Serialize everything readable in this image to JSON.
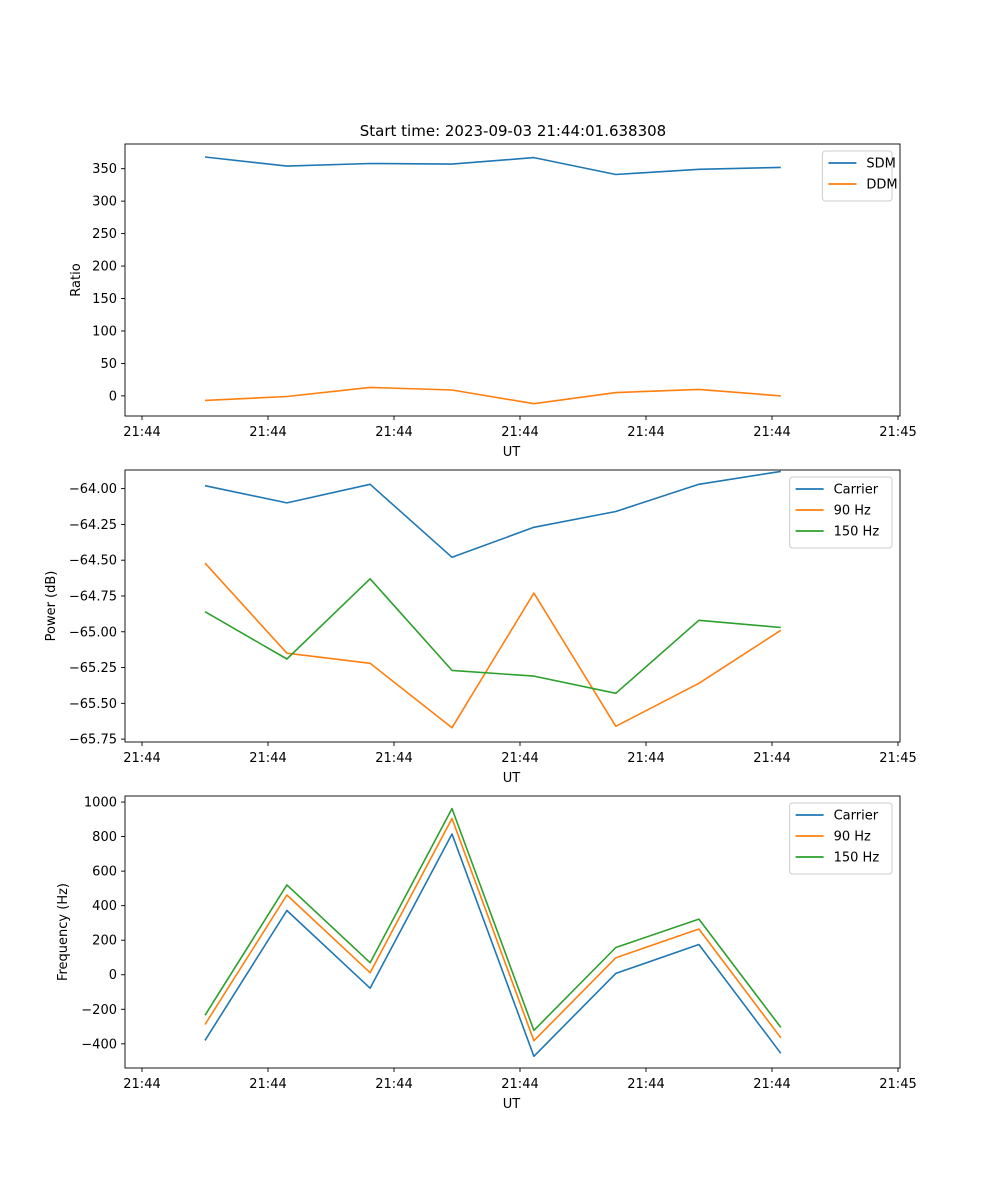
{
  "figure_title": "Start time: 2023-09-03 21:44:01.638308",
  "chart_data": [
    {
      "type": "line",
      "title": "Start time: 2023-09-03 21:44:01.638308",
      "xlabel": "UT",
      "ylabel": "Ratio",
      "xlim": [
        0,
        6
      ],
      "ylim": [
        -31,
        388
      ],
      "x_ticks": [
        0.0,
        1.0,
        2.0,
        3.0,
        4.0,
        5.0,
        6.0
      ],
      "x_tick_labels": [
        "21:44",
        "21:44",
        "21:44",
        "21:44",
        "21:44",
        "21:44",
        "21:45"
      ],
      "y_ticks": [
        0,
        50,
        100,
        150,
        200,
        250,
        300,
        350
      ],
      "y_tick_labels": [
        "0",
        "50",
        "100",
        "150",
        "200",
        "250",
        "300",
        "350"
      ],
      "x": [
        0.5,
        1.15,
        1.81,
        2.46,
        3.11,
        3.76,
        4.42,
        5.07
      ],
      "legend_position": "top-right",
      "series": [
        {
          "name": "SDM",
          "color": "#1f77b4",
          "values": [
            368,
            354,
            358,
            357,
            367,
            341,
            349,
            352
          ]
        },
        {
          "name": "DDM",
          "color": "#ff7f0e",
          "values": [
            -7,
            -1,
            13,
            9,
            -12,
            5,
            10,
            0
          ]
        }
      ]
    },
    {
      "type": "line",
      "title": "",
      "xlabel": "UT",
      "ylabel": "Power (dB)",
      "xlim": [
        0,
        6
      ],
      "ylim": [
        -65.77,
        -63.87
      ],
      "x_ticks": [
        0.0,
        1.0,
        2.0,
        3.0,
        4.0,
        5.0,
        6.0
      ],
      "x_tick_labels": [
        "21:44",
        "21:44",
        "21:44",
        "21:44",
        "21:44",
        "21:44",
        "21:45"
      ],
      "y_ticks": [
        -64.0,
        -64.25,
        -64.5,
        -64.75,
        -65.0,
        -65.25,
        -65.5,
        -65.75
      ],
      "y_tick_labels": [
        "−64.00",
        "−64.25",
        "−64.50",
        "−64.75",
        "−65.00",
        "−65.25",
        "−65.50",
        "−65.75"
      ],
      "x": [
        0.5,
        1.15,
        1.81,
        2.46,
        3.11,
        3.76,
        4.42,
        5.07
      ],
      "legend_position": "top-right",
      "series": [
        {
          "name": "Carrier",
          "color": "#1f77b4",
          "values": [
            -63.98,
            -64.1,
            -63.97,
            -64.48,
            -64.27,
            -64.16,
            -63.97,
            -63.88
          ]
        },
        {
          "name": "90 Hz",
          "color": "#ff7f0e",
          "values": [
            -64.52,
            -65.15,
            -65.22,
            -65.67,
            -64.73,
            -65.66,
            -65.36,
            -64.99
          ]
        },
        {
          "name": "150 Hz",
          "color": "#2ca02c",
          "values": [
            -64.86,
            -65.19,
            -64.63,
            -65.27,
            -65.31,
            -65.43,
            -64.92,
            -64.97
          ]
        }
      ]
    },
    {
      "type": "line",
      "title": "",
      "xlabel": "UT",
      "ylabel": "Frequency (Hz)",
      "xlim": [
        0,
        6
      ],
      "ylim": [
        -540,
        1035
      ],
      "x_ticks": [
        0.0,
        1.0,
        2.0,
        3.0,
        4.0,
        5.0,
        6.0
      ],
      "x_tick_labels": [
        "21:44",
        "21:44",
        "21:44",
        "21:44",
        "21:44",
        "21:44",
        "21:45"
      ],
      "y_ticks": [
        -400,
        -200,
        0,
        200,
        400,
        600,
        800,
        1000
      ],
      "y_tick_labels": [
        "−400",
        "−200",
        "0",
        "200",
        "400",
        "600",
        "800",
        "1000"
      ],
      "x": [
        0.5,
        1.15,
        1.81,
        2.46,
        3.11,
        3.76,
        4.42,
        5.07
      ],
      "legend_position": "top-right",
      "series": [
        {
          "name": "Carrier",
          "color": "#1f77b4",
          "values": [
            -380,
            372,
            -78,
            815,
            -472,
            8,
            175,
            -455
          ]
        },
        {
          "name": "90 Hz",
          "color": "#ff7f0e",
          "values": [
            -288,
            462,
            12,
            905,
            -382,
            98,
            265,
            -365
          ]
        },
        {
          "name": "150 Hz",
          "color": "#2ca02c",
          "values": [
            -235,
            520,
            70,
            962,
            -322,
            158,
            322,
            -305
          ]
        }
      ]
    }
  ]
}
